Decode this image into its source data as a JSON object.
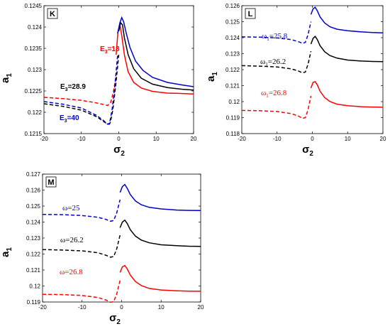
{
  "chart_data": [
    {
      "type": "line",
      "panel_label": "K",
      "xlabel": "σ",
      "xlabel_sub": "2",
      "ylabel": "a",
      "ylabel_sub": "1",
      "xlim": [
        -20,
        20
      ],
      "ylim": [
        0.1215,
        0.1245
      ],
      "xticks": [
        "-20",
        "-10",
        "0",
        "10",
        "20"
      ],
      "yticks": [
        "0.1215",
        "0.122",
        "0.1225",
        "0.123",
        "0.1235",
        "0.124",
        "0.1245"
      ],
      "series": [
        {
          "annotation": "E=18",
          "annotation_main": "E",
          "annotation_sub": "3",
          "annotation_rest": "=18",
          "color": "#ff0000",
          "dashed": {
            "x": [
              -20,
              -15,
              -10,
              -6,
              -4,
              -3,
              -2.2,
              -1.5,
              -0.7
            ],
            "y": [
              0.12235,
              0.12232,
              0.12228,
              0.12222,
              0.12218,
              0.12216,
              0.12222,
              0.12245,
              0.12285
            ]
          },
          "solid": {
            "x": [
              -0.7,
              -0.2,
              0.3,
              0.8,
              1.5,
              2.5,
              4,
              6,
              9,
              13,
              17,
              20
            ],
            "y": [
              0.12335,
              0.1239,
              0.12405,
              0.1238,
              0.12335,
              0.12295,
              0.1227,
              0.12257,
              0.12249,
              0.12245,
              0.12244,
              0.12243
            ]
          }
        },
        {
          "annotation": "E=28.9",
          "annotation_main": "E",
          "annotation_sub": "3",
          "annotation_rest": "=28.9",
          "color": "#000000",
          "dashed": {
            "x": [
              -20,
              -15,
              -10,
              -6,
              -4,
              -3,
              -2.3,
              -1.6,
              -0.8,
              0
            ],
            "y": [
              0.1222,
              0.12214,
              0.12205,
              0.1219,
              0.12178,
              0.12172,
              0.12175,
              0.12205,
              0.12265,
              0.12335
            ]
          },
          "solid": {
            "x": [
              0,
              0.5,
              1,
              1.5,
              2.5,
              4,
              6,
              9,
              13,
              17,
              20
            ],
            "y": [
              0.1239,
              0.1241,
              0.12405,
              0.12375,
              0.12335,
              0.12302,
              0.1228,
              0.12266,
              0.12258,
              0.12254,
              0.12252
            ]
          }
        },
        {
          "annotation": "E=40",
          "annotation_main": "E",
          "annotation_sub": "3",
          "annotation_rest": "=40",
          "color": "#0000cc",
          "dashed": {
            "x": [
              -20,
              -15,
              -10,
              -6,
              -4,
              -3,
              -2.5,
              -1.8,
              -1,
              -0.3
            ],
            "y": [
              0.12225,
              0.12219,
              0.1221,
              0.12193,
              0.1218,
              0.12172,
              0.12172,
              0.12205,
              0.12265,
              0.12335
            ]
          },
          "solid": {
            "x": [
              -0.3,
              0.3,
              0.8,
              1.3,
              2,
              3,
              4.5,
              6.5,
              9,
              13,
              17,
              20
            ],
            "y": [
              0.12385,
              0.1241,
              0.12422,
              0.12412,
              0.12385,
              0.12352,
              0.1232,
              0.12298,
              0.12282,
              0.1227,
              0.12264,
              0.1226
            ]
          }
        }
      ]
    },
    {
      "type": "line",
      "panel_label": "L",
      "xlabel": "σ",
      "xlabel_sub": "2",
      "ylabel": "a",
      "ylabel_sub": "1",
      "xlim": [
        -20,
        20
      ],
      "ylim": [
        0.118,
        0.126
      ],
      "xticks": [
        "-20",
        "-10",
        "0",
        "10",
        "20"
      ],
      "yticks": [
        "0.118",
        "0.119",
        "0.12",
        "0.121",
        "0.122",
        "0.123",
        "0.124",
        "0.125",
        "0.126"
      ],
      "series": [
        {
          "annotation": "ω=25.8",
          "annotation_main": "ω",
          "annotation_sub": "1",
          "annotation_rest": "=25.8",
          "color": "#0000cc",
          "dashed": {
            "x": [
              -20,
              -15,
              -10,
              -6,
              -4,
              -2.8,
              -2,
              -1.2,
              -0.4
            ],
            "y": [
              0.12405,
              0.12403,
              0.12398,
              0.12388,
              0.12375,
              0.12365,
              0.1237,
              0.1242,
              0.125
            ]
          },
          "solid": {
            "x": [
              -0.4,
              0.2,
              0.8,
              1.4,
              2.2,
              3.5,
              5,
              7,
              10,
              14,
              17,
              20
            ],
            "y": [
              0.12545,
              0.1258,
              0.1259,
              0.12568,
              0.1253,
              0.12492,
              0.12468,
              0.12453,
              0.12443,
              0.12436,
              0.12432,
              0.1243
            ]
          }
        },
        {
          "annotation": "ω=26.2",
          "annotation_main": "ω",
          "annotation_sub": "1",
          "annotation_rest": "=26.2",
          "color": "#000000",
          "dashed": {
            "x": [
              -20,
              -15,
              -10,
              -6,
              -4,
              -2.8,
              -2,
              -1.2,
              -0.4
            ],
            "y": [
              0.12225,
              0.12222,
              0.12217,
              0.12205,
              0.12192,
              0.1218,
              0.12185,
              0.12235,
              0.12315
            ]
          },
          "solid": {
            "x": [
              -0.4,
              0.2,
              0.8,
              1.4,
              2.2,
              3.5,
              5,
              7,
              10,
              14,
              17,
              20
            ],
            "y": [
              0.1236,
              0.12395,
              0.12408,
              0.12388,
              0.1235,
              0.12312,
              0.12288,
              0.12272,
              0.1226,
              0.12254,
              0.12251,
              0.1225
            ]
          }
        },
        {
          "annotation": "ω=26.8",
          "annotation_main": "ω",
          "annotation_sub": "1",
          "annotation_rest": "=26.8",
          "color": "#ff0000",
          "dashed": {
            "x": [
              -20,
              -15,
              -10,
              -6,
              -4,
              -2.8,
              -2,
              -1.2,
              -0.4
            ],
            "y": [
              0.11945,
              0.11943,
              0.11938,
              0.11925,
              0.1191,
              0.11895,
              0.119,
              0.1195,
              0.12035
            ]
          },
          "solid": {
            "x": [
              -0.4,
              0.2,
              0.8,
              1.4,
              2.2,
              3.5,
              5,
              7,
              10,
              14,
              17,
              20
            ],
            "y": [
              0.12085,
              0.1212,
              0.12125,
              0.12105,
              0.12065,
              0.12025,
              0.12,
              0.11984,
              0.11974,
              0.11968,
              0.11966,
              0.11965
            ]
          }
        }
      ]
    },
    {
      "type": "line",
      "panel_label": "M",
      "xlabel": "σ",
      "xlabel_sub": "2",
      "ylabel": "a",
      "ylabel_sub": "1",
      "xlim": [
        -20,
        20
      ],
      "ylim": [
        0.119,
        0.127
      ],
      "xticks": [
        "-20",
        "-10",
        "0",
        "10",
        "20"
      ],
      "yticks": [
        "0.119",
        "0.12",
        "0.121",
        "0.122",
        "0.123",
        "0.124",
        "0.125",
        "0.126",
        "0.127"
      ],
      "series": [
        {
          "annotation": "ω=25",
          "annotation_main": "ω=25",
          "annotation_sub": "",
          "annotation_rest": "",
          "color": "#0000cc",
          "dashed": {
            "x": [
              -20,
              -15,
              -10,
              -6,
              -4,
              -2.8,
              -2,
              -1.2,
              -0.4
            ],
            "y": [
              0.12448,
              0.12446,
              0.12441,
              0.1243,
              0.12417,
              0.12405,
              0.1241,
              0.1246,
              0.1254
            ]
          },
          "solid": {
            "x": [
              -0.4,
              0.2,
              0.8,
              1.4,
              2.2,
              3.5,
              5,
              7,
              10,
              14,
              17,
              20
            ],
            "y": [
              0.12585,
              0.12622,
              0.12635,
              0.12612,
              0.12572,
              0.12532,
              0.12508,
              0.12492,
              0.12482,
              0.12475,
              0.12473,
              0.12472
            ]
          }
        },
        {
          "annotation": "ω=26.2",
          "annotation_main": "ω=26.2",
          "annotation_sub": "",
          "annotation_rest": "",
          "color": "#000000",
          "dashed": {
            "x": [
              -20,
              -15,
              -10,
              -6,
              -4,
              -2.8,
              -2,
              -1.2,
              -0.4
            ],
            "y": [
              0.12228,
              0.12225,
              0.1222,
              0.12208,
              0.12193,
              0.1218,
              0.12185,
              0.12235,
              0.12318
            ]
          },
          "solid": {
            "x": [
              -0.4,
              0.2,
              0.8,
              1.4,
              2.2,
              3.5,
              5,
              7,
              10,
              14,
              17,
              20
            ],
            "y": [
              0.12365,
              0.124,
              0.12412,
              0.12392,
              0.12352,
              0.12312,
              0.12287,
              0.1227,
              0.12258,
              0.12252,
              0.12249,
              0.12248
            ]
          }
        },
        {
          "annotation": "ω=26.8",
          "annotation_main": "ω=26.8",
          "annotation_sub": "",
          "annotation_rest": "",
          "color": "#ff0000",
          "dashed": {
            "x": [
              -20,
              -15,
              -10,
              -6,
              -4,
              -2.8,
              -2,
              -1.2,
              -0.4
            ],
            "y": [
              0.11948,
              0.11946,
              0.11941,
              0.11928,
              0.11913,
              0.11898,
              0.11903,
              0.11953,
              0.12035
            ]
          },
          "solid": {
            "x": [
              -0.4,
              0.2,
              0.8,
              1.4,
              2.2,
              3.5,
              5,
              7,
              10,
              14,
              17,
              20
            ],
            "y": [
              0.12085,
              0.1212,
              0.12128,
              0.12108,
              0.12068,
              0.12028,
              0.12002,
              0.11985,
              0.11975,
              0.1197,
              0.11968,
              0.11967
            ]
          }
        }
      ]
    }
  ]
}
